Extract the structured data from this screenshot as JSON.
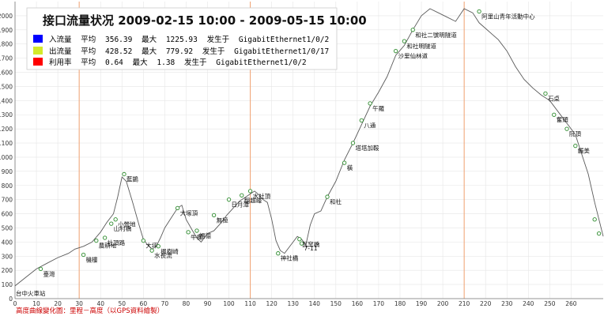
{
  "header": {
    "title": "接口流量状况 2009-02-15 10:00 - 2009-05-15 10:00"
  },
  "legend": [
    {
      "name": "入流量",
      "color": "#0000ff",
      "avg_label": "平均",
      "avg": "356.39",
      "max_label": "最大",
      "max": "1225.93",
      "at_label": "发生于",
      "iface": "GigabitEthernet1/0/2"
    },
    {
      "name": "出流量",
      "color": "#d4ea2a",
      "avg_label": "平均",
      "avg": "428.52",
      "max_label": "最大",
      "max": "779.92",
      "at_label": "发生于",
      "iface": "GigabitEthernet1/0/17"
    },
    {
      "name": "利用率",
      "color": "#ff0000",
      "avg_label": "平均",
      "avg": "0.64",
      "max_label": "最大",
      "max": "1.38",
      "at_label": "发生于",
      "iface": "GigabitEthernet1/0/2"
    }
  ],
  "footer": "高度曲線變化圖：里程－高度（以GPS資料繪製）",
  "chart_data": {
    "type": "line",
    "xlim": [
      0,
      275
    ],
    "ylim": [
      0,
      2100
    ],
    "x_ticks": [
      0,
      10,
      20,
      30,
      40,
      50,
      60,
      70,
      80,
      90,
      100,
      110,
      120,
      130,
      140,
      150,
      160,
      170,
      180,
      190,
      200,
      210,
      220,
      230,
      240,
      250,
      260
    ],
    "y_ticks": [
      0,
      100,
      200,
      300,
      400,
      500,
      600,
      700,
      800,
      900,
      1000,
      1100,
      1200,
      1300,
      1400,
      1500,
      1600,
      1700,
      1800,
      1900,
      2000
    ],
    "vlines": [
      30,
      110,
      210
    ],
    "vline_color": "#f0a070",
    "line_color": "#5a5a5a",
    "series": [
      {
        "x": [
          0,
          5,
          10,
          15,
          20,
          25,
          28,
          32,
          36,
          40,
          43,
          46,
          48,
          50,
          52,
          55,
          58,
          60,
          62,
          64,
          66,
          68,
          70,
          73,
          76,
          78,
          80,
          83,
          85,
          87,
          90,
          93,
          96,
          99,
          102,
          105,
          108,
          110,
          112,
          114,
          116,
          118,
          120,
          122,
          124,
          126,
          128,
          130,
          132,
          134,
          136,
          138,
          140,
          143,
          146,
          150,
          154,
          158,
          162,
          166,
          170,
          174,
          178,
          182,
          186,
          190,
          194,
          198,
          202,
          206,
          210,
          214,
          217,
          220,
          223,
          226,
          230,
          234,
          238,
          242,
          246,
          250,
          254,
          258,
          262,
          265,
          268,
          271,
          275
        ],
        "y": [
          90,
          150,
          210,
          250,
          290,
          320,
          350,
          370,
          400,
          470,
          540,
          600,
          720,
          860,
          830,
          680,
          520,
          420,
          380,
          350,
          370,
          430,
          500,
          570,
          640,
          660,
          560,
          480,
          430,
          400,
          460,
          480,
          530,
          590,
          640,
          690,
          720,
          740,
          760,
          735,
          700,
          680,
          560,
          410,
          340,
          320,
          360,
          400,
          440,
          420,
          380,
          520,
          600,
          620,
          720,
          830,
          980,
          1100,
          1230,
          1360,
          1460,
          1570,
          1720,
          1790,
          1900,
          2000,
          2050,
          2020,
          1990,
          1960,
          2050,
          2020,
          1950,
          1910,
          1870,
          1830,
          1750,
          1640,
          1550,
          1490,
          1440,
          1400,
          1320,
          1240,
          1160,
          1020,
          880,
          680,
          440
        ]
      }
    ],
    "markers": [
      {
        "x": 12,
        "y": 210,
        "label": "臺灣"
      },
      {
        "x": 32,
        "y": 310,
        "label": "機樓"
      },
      {
        "x": 38,
        "y": 410,
        "label": "農耕地"
      },
      {
        "x": 42,
        "y": 430,
        "label": "社頂路"
      },
      {
        "x": 45,
        "y": 530,
        "label": "山村橋"
      },
      {
        "x": 47,
        "y": 560,
        "label": "小營地"
      },
      {
        "x": 51,
        "y": 880,
        "label": "藍鵲"
      },
      {
        "x": 60,
        "y": 410,
        "label": "大坪"
      },
      {
        "x": 64,
        "y": 340,
        "label": "水長流"
      },
      {
        "x": 67,
        "y": 370,
        "label": "楓樹崎"
      },
      {
        "x": 76,
        "y": 640,
        "label": "大塚頂"
      },
      {
        "x": 81,
        "y": 470,
        "label": "牛欄"
      },
      {
        "x": 85,
        "y": 480,
        "label": "福德"
      },
      {
        "x": 93,
        "y": 590,
        "label": "無極"
      },
      {
        "x": 100,
        "y": 700,
        "label": "日月潭"
      },
      {
        "x": 106,
        "y": 730,
        "label": "翻越峰"
      },
      {
        "x": 110,
        "y": 760,
        "label": "水社頂"
      },
      {
        "x": 123,
        "y": 320,
        "label": "神社橋"
      },
      {
        "x": 133,
        "y": 420,
        "label": "瓦窯橋"
      },
      {
        "x": 134,
        "y": 390,
        "label": "7-11"
      },
      {
        "x": 146,
        "y": 720,
        "label": "和社"
      },
      {
        "x": 154,
        "y": 960,
        "label": "橫"
      },
      {
        "x": 158,
        "y": 1100,
        "label": "塔塔加鞍"
      },
      {
        "x": 162,
        "y": 1260,
        "label": "八通"
      },
      {
        "x": 166,
        "y": 1380,
        "label": "午羅"
      },
      {
        "x": 178,
        "y": 1750,
        "label": "沙里仙林道"
      },
      {
        "x": 182,
        "y": 1820,
        "label": "和社明隧道"
      },
      {
        "x": 186,
        "y": 1900,
        "label": "和社二號明隧道"
      },
      {
        "x": 217,
        "y": 2030,
        "label": "阿里山青年活動中心"
      },
      {
        "x": 248,
        "y": 1450,
        "label": "石桌"
      },
      {
        "x": 252,
        "y": 1300,
        "label": "奮頭"
      },
      {
        "x": 258,
        "y": 1200,
        "label": "阮頂"
      },
      {
        "x": 262,
        "y": 1080,
        "label": "觸美"
      },
      {
        "x": 271,
        "y": 560,
        "label": ""
      },
      {
        "x": 273,
        "y": 460,
        "label": ""
      }
    ],
    "x_origin_label": "台中火車站"
  }
}
